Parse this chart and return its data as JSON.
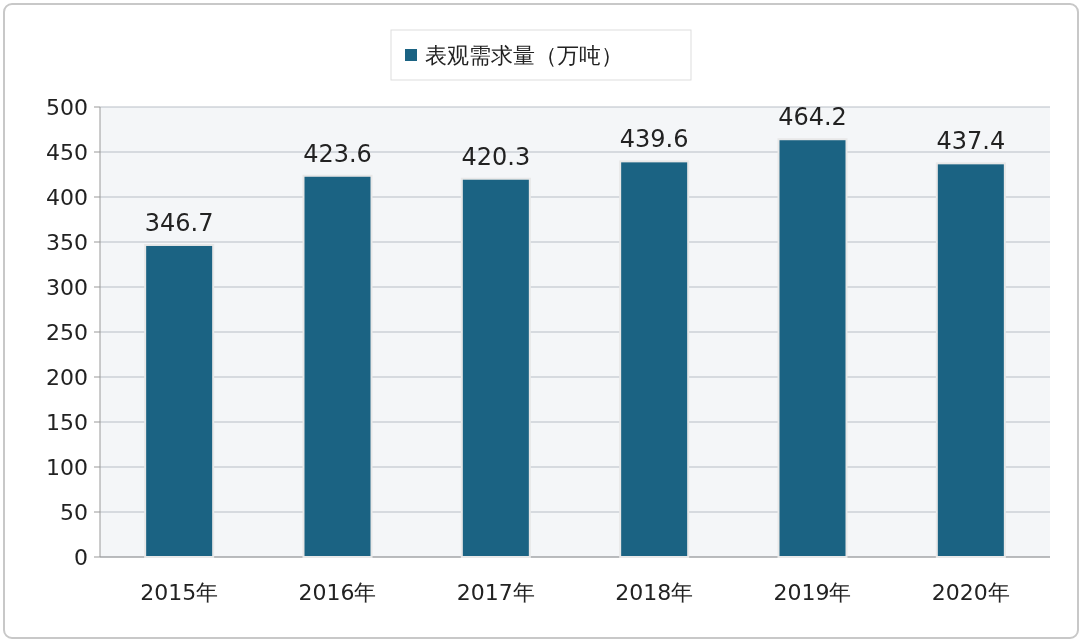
{
  "chart_data": {
    "type": "bar",
    "categories": [
      "2015年",
      "2016年",
      "2017年",
      "2018年",
      "2019年",
      "2020年"
    ],
    "series": [
      {
        "name": "表观需求量（万吨）",
        "color": "#1b6383",
        "values": [
          346.7,
          423.6,
          420.3,
          439.6,
          464.2,
          437.4
        ]
      }
    ],
    "ylim": [
      0,
      500
    ],
    "yticks": [
      0,
      50,
      100,
      150,
      200,
      250,
      300,
      350,
      400,
      450,
      500
    ],
    "grid": "y",
    "legend": "top",
    "data_labels": true
  }
}
